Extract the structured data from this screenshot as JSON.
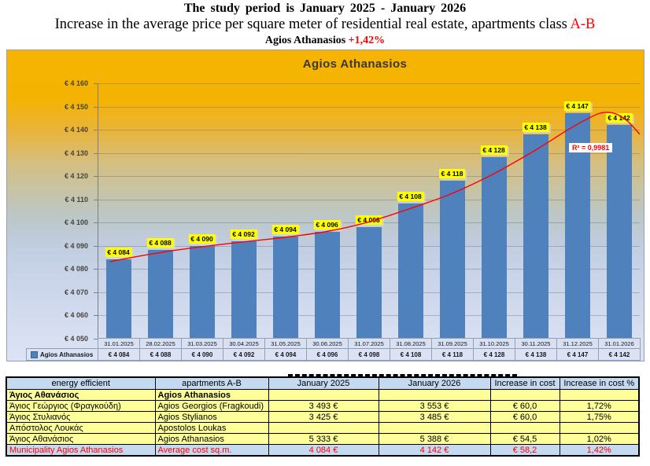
{
  "header": {
    "line1": "The study period is January 2025 - January 2026",
    "line2_text": "Increase in the average price per square meter of residential real estate, apartments class ",
    "line2_accent": "A-B",
    "line3_text": "Agios Athanasios ",
    "line3_accent": "+1,42%",
    "accent_color": "#ff0000"
  },
  "chart_data": {
    "type": "bar",
    "title": "Agios Athanasios",
    "series_name": "Agios Athanasios",
    "categories": [
      "31.01.2025",
      "28.02.2025",
      "31.03.2025",
      "30.04.2025",
      "31.05.2025",
      "30.06.2025",
      "31.07.2025",
      "31.08.2025",
      "31.09.2025",
      "31.10.2025",
      "30.11.2025",
      "31.12.2025",
      "31.01.2026"
    ],
    "values": [
      4084,
      4088,
      4090,
      4092,
      4094,
      4096,
      4098,
      4108,
      4118,
      4128,
      4138,
      4147,
      4142
    ],
    "value_labels": [
      "€ 4 084",
      "€ 4 088",
      "€ 4 090",
      "€ 4 092",
      "€ 4 094",
      "€ 4 096",
      "€ 4 098",
      "€ 4 108",
      "€ 4 118",
      "€ 4 128",
      "€ 4 138",
      "€ 4 147",
      "€ 4 142"
    ],
    "ylim": [
      4050,
      4160
    ],
    "ytick_step": 10,
    "ytick_labels": [
      "€ 4 160",
      "€ 4 150",
      "€ 4 140",
      "€ 4 130",
      "€ 4 120",
      "€ 4 110",
      "€ 4 100",
      "€ 4 090",
      "€ 4 080",
      "€ 4 070",
      "€ 4 060",
      "€ 4 050"
    ],
    "grid": true,
    "legend_position": "bottom-left-table",
    "data_table_shown": true,
    "colors": {
      "bar": "#4f81bd",
      "label_highlight": "#ffff00",
      "trend": "#ff0000"
    },
    "trendline": {
      "label": "R² = 0,9981",
      "color": "#ff0000",
      "samples": [
        [
          0.3,
          4083.0
        ],
        [
          0.5,
          4083.8
        ],
        [
          1.5,
          4087.0
        ],
        [
          2.5,
          4089.5
        ],
        [
          3.5,
          4091.6
        ],
        [
          4.5,
          4093.6
        ],
        [
          5.5,
          4096.1
        ],
        [
          6.5,
          4100.2
        ],
        [
          7.5,
          4106.0
        ],
        [
          8.5,
          4112.5
        ],
        [
          9.5,
          4121.0
        ],
        [
          10.5,
          4131.2
        ],
        [
          11.3,
          4140.2
        ],
        [
          11.8,
          4145.2
        ],
        [
          12.1,
          4147.3
        ],
        [
          12.4,
          4147.0
        ],
        [
          12.7,
          4143.8
        ],
        [
          13.0,
          4138.0
        ]
      ]
    }
  },
  "table": {
    "headers": [
      "energy efficient",
      "apartments A-B",
      "January 2025",
      "January 2026",
      "Increase in cost",
      "Increase in cost  %"
    ],
    "rows": [
      [
        "Άγιος Αθανάσιος",
        "Agios Athanasios",
        "",
        "",
        "",
        ""
      ],
      [
        "Άγιος Γεώργιος (Φραγκούδη)",
        "Agios Georgios (Fragkoudi)",
        "3 493 €",
        "3 553 €",
        "€ 60,0",
        "1,72%"
      ],
      [
        "Άγιος Στυλιανός",
        "Agios Stylianos",
        "3 425 €",
        "3 485 €",
        "€ 60,0",
        "1,75%"
      ],
      [
        "Απόστολος Λουκάς",
        "Apostolos Loukas",
        "",
        "",
        "",
        ""
      ],
      [
        "Άγιος Αθανάσιος",
        "Agios Athanasios",
        "5 333 €",
        "5 388 €",
        "€ 54,5",
        "1,02%"
      ],
      [
        "Municipality Agios Athanasios",
        "Average cost sq.m.",
        "4 084 €",
        "4 142 €",
        "€ 58,2",
        "1,42%"
      ]
    ]
  }
}
